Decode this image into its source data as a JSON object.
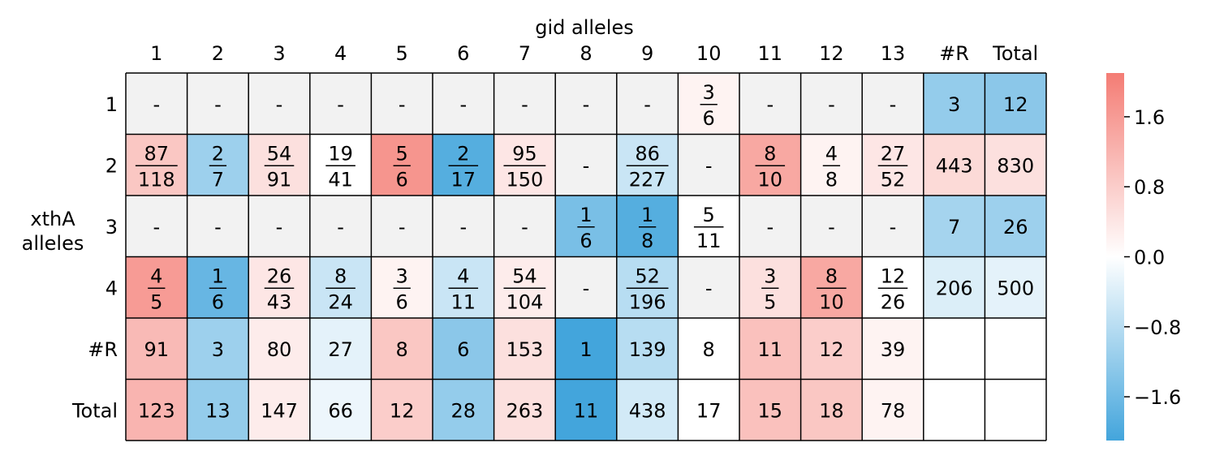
{
  "chart_data": {
    "type": "heatmap",
    "title": "",
    "xlabel": "gid alleles",
    "ylabel": "xthA\nalleles",
    "col_labels": [
      "1",
      "2",
      "3",
      "4",
      "5",
      "6",
      "7",
      "8",
      "9",
      "10",
      "11",
      "12",
      "13",
      "#R",
      "Total"
    ],
    "row_labels": [
      "1",
      "2",
      "3",
      "4",
      "#R",
      "Total"
    ],
    "cells": [
      [
        "-",
        "-",
        "-",
        "-",
        "-",
        "-",
        "-",
        "-",
        "-",
        "3/6",
        "-",
        "-",
        "-",
        "3",
        "12"
      ],
      [
        "87/118",
        "2/7",
        "54/91",
        "19/41",
        "5/6",
        "2/17",
        "95/150",
        "-",
        "86/227",
        "-",
        "8/10",
        "4/8",
        "27/52",
        "443",
        "830"
      ],
      [
        "-",
        "-",
        "-",
        "-",
        "-",
        "-",
        "-",
        "1/6",
        "1/8",
        "5/11",
        "-",
        "-",
        "-",
        "7",
        "26"
      ],
      [
        "4/5",
        "1/6",
        "26/43",
        "8/24",
        "3/6",
        "4/11",
        "54/104",
        "-",
        "52/196",
        "-",
        "3/5",
        "8/10",
        "12/26",
        "206",
        "500"
      ],
      [
        "91",
        "3",
        "80",
        "27",
        "8",
        "6",
        "153",
        "1",
        "139",
        "8",
        "11",
        "12",
        "39",
        "",
        ""
      ],
      [
        "123",
        "13",
        "147",
        "66",
        "12",
        "28",
        "263",
        "11",
        "438",
        "17",
        "15",
        "18",
        "78",
        "",
        ""
      ]
    ],
    "values": [
      [
        null,
        null,
        null,
        null,
        null,
        null,
        null,
        null,
        null,
        0.2,
        null,
        null,
        null,
        -1.2,
        -1.3
      ],
      [
        0.9,
        -1.1,
        0.5,
        0.0,
        1.7,
        -1.9,
        0.4,
        null,
        -0.6,
        null,
        1.4,
        0.2,
        0.4,
        0.6,
        0.5
      ],
      [
        null,
        null,
        null,
        null,
        null,
        null,
        null,
        -1.5,
        -1.9,
        0.0,
        null,
        null,
        null,
        -1.0,
        -1.1
      ],
      [
        1.6,
        -1.7,
        0.4,
        -0.6,
        0.2,
        -0.6,
        0.3,
        null,
        -0.8,
        null,
        0.5,
        1.4,
        0.0,
        -0.4,
        -0.3
      ],
      [
        1.1,
        -1.1,
        0.3,
        -0.3,
        0.9,
        -1.3,
        0.5,
        -2.1,
        -0.8,
        0.0,
        1.0,
        0.8,
        0.2,
        null,
        null
      ],
      [
        1.2,
        -1.2,
        0.3,
        -0.2,
        0.8,
        -1.2,
        0.5,
        -2.2,
        -0.5,
        0.0,
        1.0,
        0.9,
        0.2,
        null,
        null
      ]
    ],
    "colorbar": {
      "vmin": -2.1,
      "vmax": 2.1,
      "ticks": [
        1.6,
        0.8,
        0.0,
        -0.8,
        -1.6
      ],
      "tick_labels": [
        "1.6",
        "0.8",
        "0.0",
        "−0.8",
        "−1.6"
      ],
      "color_low": "#43a5dc",
      "color_mid": "#ffffff",
      "color_high": "#f47c74"
    },
    "missing_color": "#f2f2f2",
    "empty_color": "#ffffff"
  }
}
